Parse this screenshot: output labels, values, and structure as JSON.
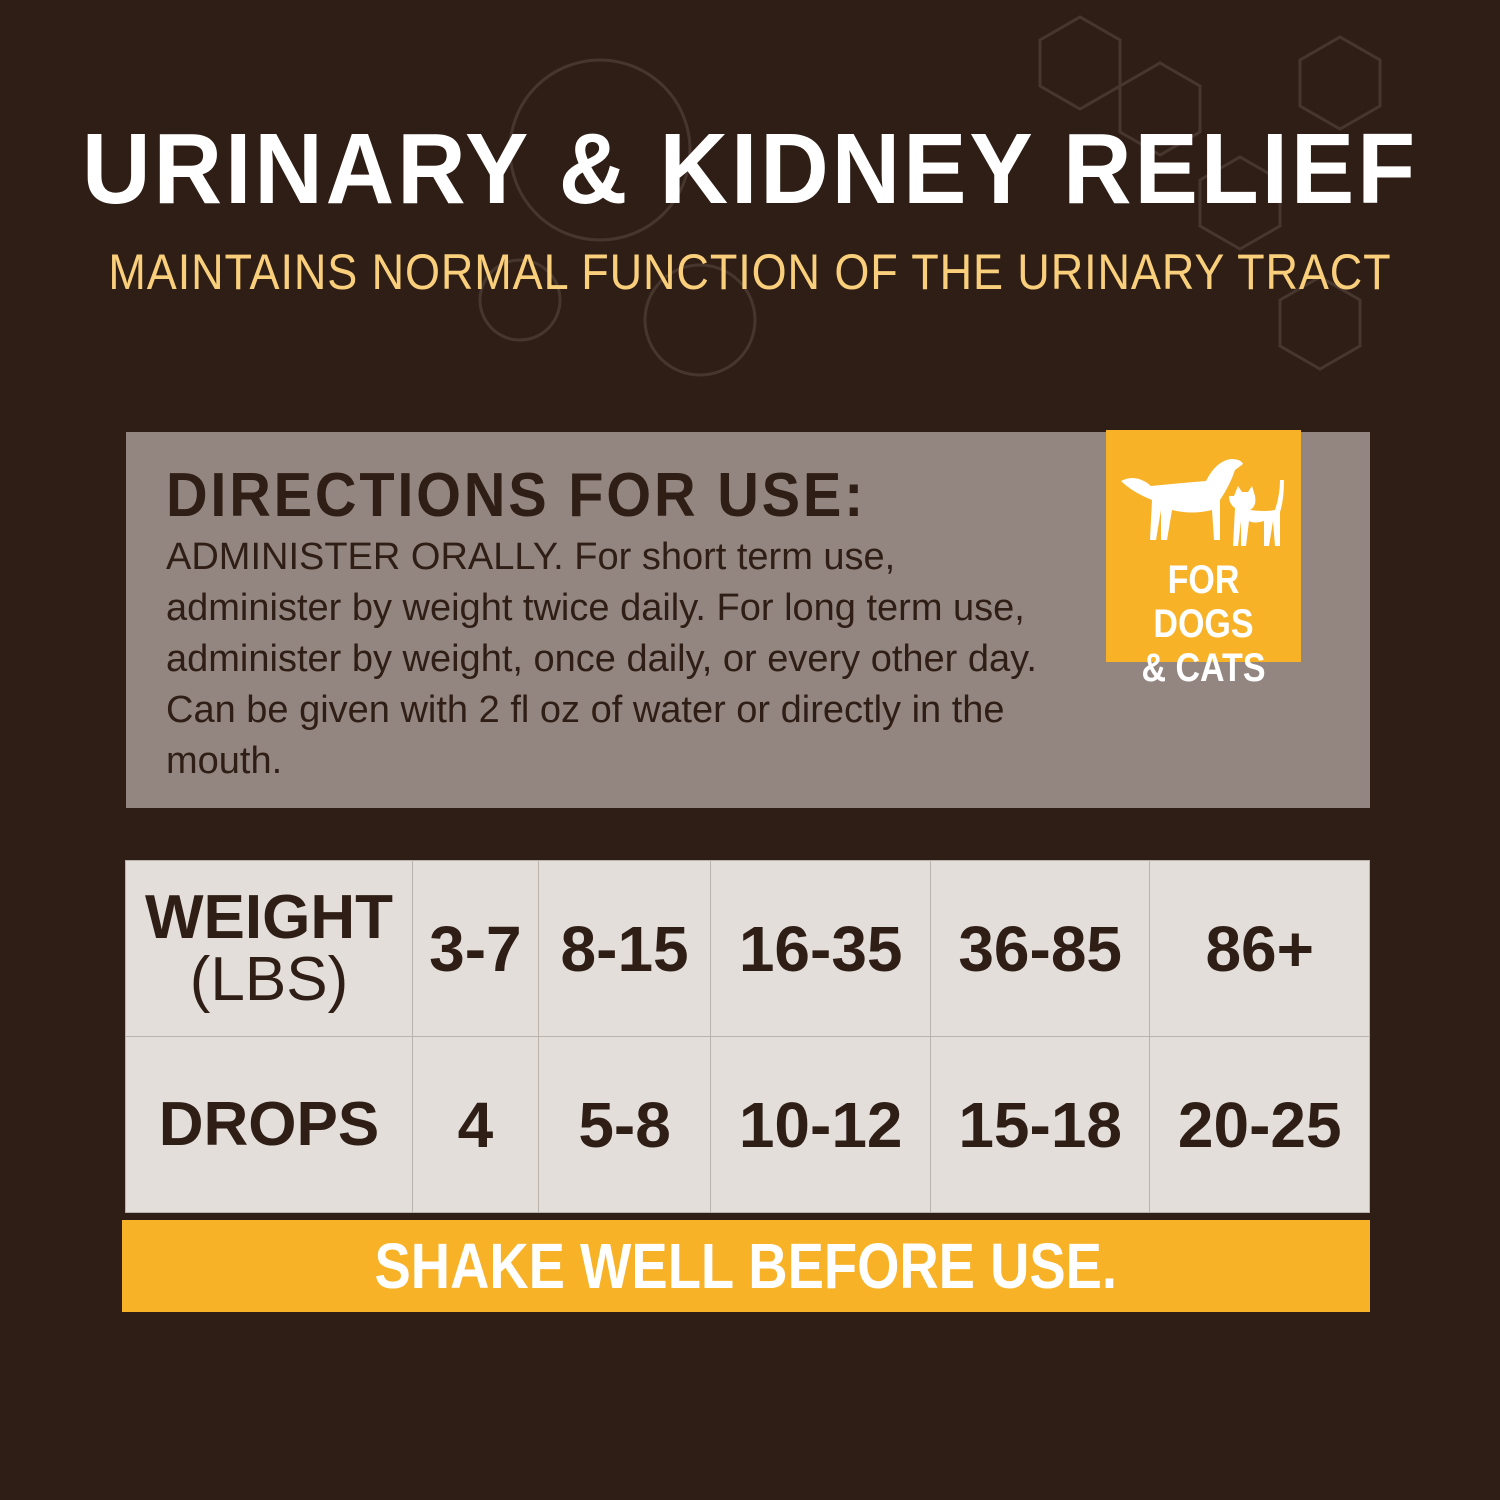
{
  "header": {
    "title": "URINARY & KIDNEY RELIEF",
    "subtitle": "MAINTAINS NORMAL FUNCTION OF THE URINARY TRACT"
  },
  "directions": {
    "heading": "DIRECTIONS FOR USE:",
    "text": "ADMINISTER ORALLY. For short term use, administer by weight twice daily. For long term use, administer by weight, once daily, or every other day. Can be given with 2 fl oz of water or directly in the mouth."
  },
  "badge": {
    "line1": "FOR DOGS",
    "line2": "& CATS",
    "icon": "dog-and-cat-silhouette"
  },
  "dosage_table": {
    "weight_label": "WEIGHT",
    "weight_unit": "(LBS)",
    "drops_label": "DROPS",
    "weights": [
      "3-7",
      "8-15",
      "16-35",
      "36-85",
      "86+"
    ],
    "drops": [
      "4",
      "5-8",
      "10-12",
      "15-18",
      "20-25"
    ]
  },
  "footer": {
    "note": "SHAKE WELL BEFORE USE."
  },
  "colors": {
    "background": "#2f1e16",
    "accent": "#f8b228",
    "subtitle": "#f9cf7c",
    "panel": "#938680",
    "table": "#e3deda"
  }
}
